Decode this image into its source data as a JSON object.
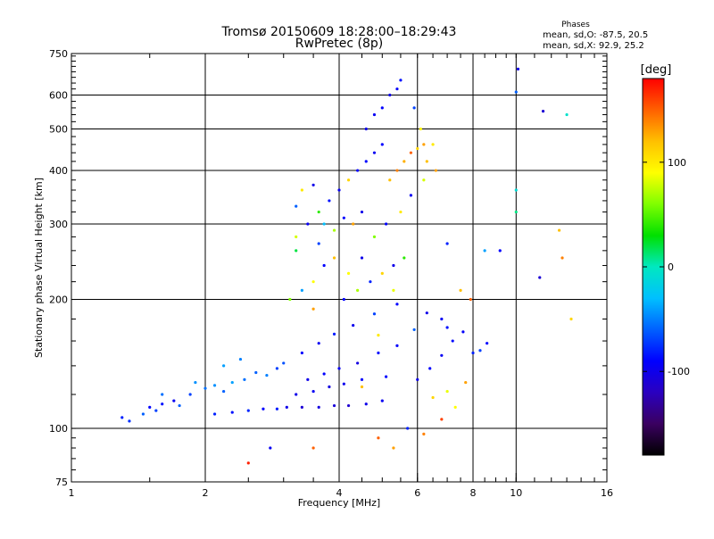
{
  "chart_data": {
    "type": "scatter",
    "title": "Tromsø 20150609 18:28:00–18:29:43",
    "subtitle": "RwPretec (8p)",
    "stats": {
      "heading": "Phases",
      "line1": "mean, sd,O: -87.5, 20.5",
      "line2": "mean, sd,X:  92.9, 25.2"
    },
    "xlabel": "Frequency [MHz]",
    "ylabel": "Stationary phase Virtual Height [km]",
    "x_scale": "log2",
    "y_scale": "log",
    "xlim": [
      1,
      16
    ],
    "ylim": [
      75,
      750
    ],
    "x_ticks": [
      1,
      2,
      4,
      6,
      8,
      10,
      16
    ],
    "x_tick_labels": [
      "1",
      "2",
      "4",
      "6",
      "8",
      "10",
      "16"
    ],
    "y_ticks": [
      75,
      100,
      200,
      300,
      400,
      500,
      600,
      750
    ],
    "y_tick_labels": [
      "75",
      "100",
      "200",
      "300",
      "400",
      "500",
      "600",
      "750"
    ],
    "x_gridlines": [
      2,
      4,
      6,
      8,
      10
    ],
    "y_gridlines": [
      100,
      200,
      300,
      400,
      500,
      600
    ],
    "grid": true,
    "colorbar": {
      "label": "[deg]",
      "range": [
        -180,
        180
      ],
      "tick_values": [
        100,
        0,
        -100
      ],
      "tick_labels": [
        "100",
        "0",
        "-100"
      ],
      "colormap": [
        "#000000",
        "#3a0060",
        "#2a00c0",
        "#0000ff",
        "#0060ff",
        "#00c0ff",
        "#00e8c0",
        "#00e000",
        "#80ff00",
        "#ffff00",
        "#ffc000",
        "#ff6000",
        "#ff0000"
      ]
    },
    "series": [
      {
        "points": [
          [
            1.3,
            106,
            -80
          ],
          [
            1.35,
            104,
            -75
          ],
          [
            1.45,
            108,
            -60
          ],
          [
            1.5,
            112,
            -90
          ],
          [
            1.55,
            110,
            -70
          ],
          [
            1.6,
            114,
            -85
          ],
          [
            1.7,
            116,
            -95
          ],
          [
            1.75,
            113,
            -60
          ],
          [
            1.85,
            120,
            -70
          ],
          [
            2.0,
            124,
            -55
          ],
          [
            2.1,
            126,
            -45
          ],
          [
            2.2,
            122,
            -60
          ],
          [
            2.3,
            128,
            -40
          ],
          [
            2.45,
            130,
            -55
          ],
          [
            2.6,
            135,
            -60
          ],
          [
            2.75,
            133,
            -50
          ],
          [
            2.9,
            138,
            -70
          ],
          [
            3.0,
            142,
            -65
          ],
          [
            2.1,
            108,
            -80
          ],
          [
            2.3,
            109,
            -85
          ],
          [
            2.5,
            110,
            -78
          ],
          [
            2.7,
            111,
            -90
          ],
          [
            2.9,
            111,
            -82
          ],
          [
            3.05,
            112,
            -100
          ],
          [
            3.3,
            112,
            -110
          ],
          [
            3.6,
            112,
            -105
          ],
          [
            3.9,
            113,
            -108
          ],
          [
            4.2,
            113,
            -112
          ],
          [
            4.6,
            114,
            -100
          ],
          [
            5.0,
            116,
            -95
          ],
          [
            3.2,
            120,
            -100
          ],
          [
            3.5,
            122,
            -95
          ],
          [
            3.8,
            125,
            -105
          ],
          [
            4.1,
            127,
            -98
          ],
          [
            4.5,
            130,
            -92
          ],
          [
            5.1,
            132,
            -88
          ],
          [
            3.4,
            130,
            -100
          ],
          [
            3.7,
            134,
            -90
          ],
          [
            4.0,
            138,
            -96
          ],
          [
            4.4,
            142,
            -104
          ],
          [
            4.9,
            150,
            -86
          ],
          [
            5.4,
            156,
            -92
          ],
          [
            3.3,
            150,
            -90
          ],
          [
            3.6,
            158,
            -95
          ],
          [
            3.9,
            166,
            -82
          ],
          [
            4.3,
            174,
            -98
          ],
          [
            4.8,
            185,
            -70
          ],
          [
            5.4,
            195,
            -90
          ],
          [
            6.0,
            130,
            -100
          ],
          [
            6.4,
            138,
            -90
          ],
          [
            6.8,
            148,
            -95
          ],
          [
            7.2,
            160,
            -88
          ],
          [
            7.6,
            168,
            -92
          ],
          [
            8.0,
            150,
            -80
          ],
          [
            8.3,
            152,
            -70
          ],
          [
            8.6,
            158,
            -90
          ],
          [
            6.3,
            186,
            -100
          ],
          [
            6.8,
            180,
            -95
          ],
          [
            7.0,
            172,
            -85
          ],
          [
            5.9,
            170,
            -60
          ],
          [
            3.1,
            200,
            60
          ],
          [
            3.3,
            210,
            -40
          ],
          [
            3.5,
            220,
            90
          ],
          [
            3.7,
            240,
            -90
          ],
          [
            3.9,
            250,
            120
          ],
          [
            3.6,
            270,
            -70
          ],
          [
            3.2,
            280,
            80
          ],
          [
            3.4,
            300,
            -95
          ],
          [
            3.6,
            320,
            40
          ],
          [
            3.8,
            340,
            -85
          ],
          [
            3.3,
            360,
            100
          ],
          [
            3.5,
            370,
            -100
          ],
          [
            3.2,
            330,
            -60
          ],
          [
            3.7,
            300,
            -30
          ],
          [
            3.9,
            290,
            70
          ],
          [
            4.1,
            310,
            -90
          ],
          [
            4.3,
            300,
            130
          ],
          [
            4.5,
            320,
            -100
          ],
          [
            4.0,
            360,
            -95
          ],
          [
            4.2,
            380,
            110
          ],
          [
            4.4,
            400,
            -92
          ],
          [
            4.6,
            420,
            -88
          ],
          [
            4.8,
            440,
            -96
          ],
          [
            5.0,
            460,
            -90
          ],
          [
            4.6,
            500,
            -100
          ],
          [
            4.8,
            540,
            -95
          ],
          [
            5.0,
            560,
            -90
          ],
          [
            5.2,
            600,
            -100
          ],
          [
            5.4,
            620,
            -92
          ],
          [
            5.5,
            650,
            -85
          ],
          [
            5.2,
            380,
            120
          ],
          [
            5.4,
            400,
            140
          ],
          [
            5.6,
            420,
            125
          ],
          [
            5.8,
            440,
            150
          ],
          [
            6.0,
            450,
            110
          ],
          [
            6.2,
            460,
            130
          ],
          [
            4.2,
            230,
            90
          ],
          [
            4.5,
            250,
            -100
          ],
          [
            4.8,
            280,
            60
          ],
          [
            5.1,
            300,
            -90
          ],
          [
            5.5,
            320,
            100
          ],
          [
            5.8,
            350,
            -95
          ],
          [
            4.1,
            200,
            -90
          ],
          [
            4.4,
            210,
            70
          ],
          [
            4.7,
            220,
            -80
          ],
          [
            5.0,
            230,
            110
          ],
          [
            5.3,
            240,
            -100
          ],
          [
            5.6,
            250,
            40
          ],
          [
            6.3,
            420,
            120
          ],
          [
            6.5,
            460,
            100
          ],
          [
            6.1,
            500,
            95
          ],
          [
            5.9,
            560,
            -70
          ],
          [
            6.6,
            400,
            130
          ],
          [
            6.2,
            380,
            80
          ],
          [
            7.0,
            270,
            -80
          ],
          [
            7.5,
            210,
            120
          ],
          [
            7.9,
            200,
            150
          ],
          [
            8.5,
            260,
            -40
          ],
          [
            9.2,
            260,
            -90
          ],
          [
            10.0,
            360,
            -10
          ],
          [
            10.0,
            320,
            10
          ],
          [
            10.1,
            690,
            -100
          ],
          [
            10.0,
            610,
            -60
          ],
          [
            11.5,
            550,
            -110
          ],
          [
            13.0,
            540,
            -5
          ],
          [
            12.5,
            290,
            120
          ],
          [
            12.7,
            250,
            140
          ],
          [
            11.3,
            225,
            -110
          ],
          [
            13.3,
            180,
            110
          ],
          [
            4.9,
            95,
            150
          ],
          [
            5.3,
            90,
            130
          ],
          [
            5.7,
            100,
            -80
          ],
          [
            2.8,
            90,
            -95
          ],
          [
            3.5,
            90,
            150
          ],
          [
            2.5,
            83,
            170
          ],
          [
            6.2,
            97,
            140
          ],
          [
            6.8,
            105,
            160
          ],
          [
            7.3,
            112,
            90
          ],
          [
            7.7,
            128,
            130
          ],
          [
            6.5,
            118,
            110
          ],
          [
            7.0,
            122,
            85
          ],
          [
            4.5,
            125,
            120
          ],
          [
            4.9,
            165,
            100
          ],
          [
            5.3,
            210,
            85
          ],
          [
            3.2,
            260,
            20
          ],
          [
            3.5,
            190,
            130
          ],
          [
            2.4,
            145,
            -50
          ],
          [
            2.2,
            140,
            -40
          ],
          [
            1.9,
            128,
            -45
          ],
          [
            1.6,
            120,
            -55
          ]
        ]
      }
    ]
  }
}
